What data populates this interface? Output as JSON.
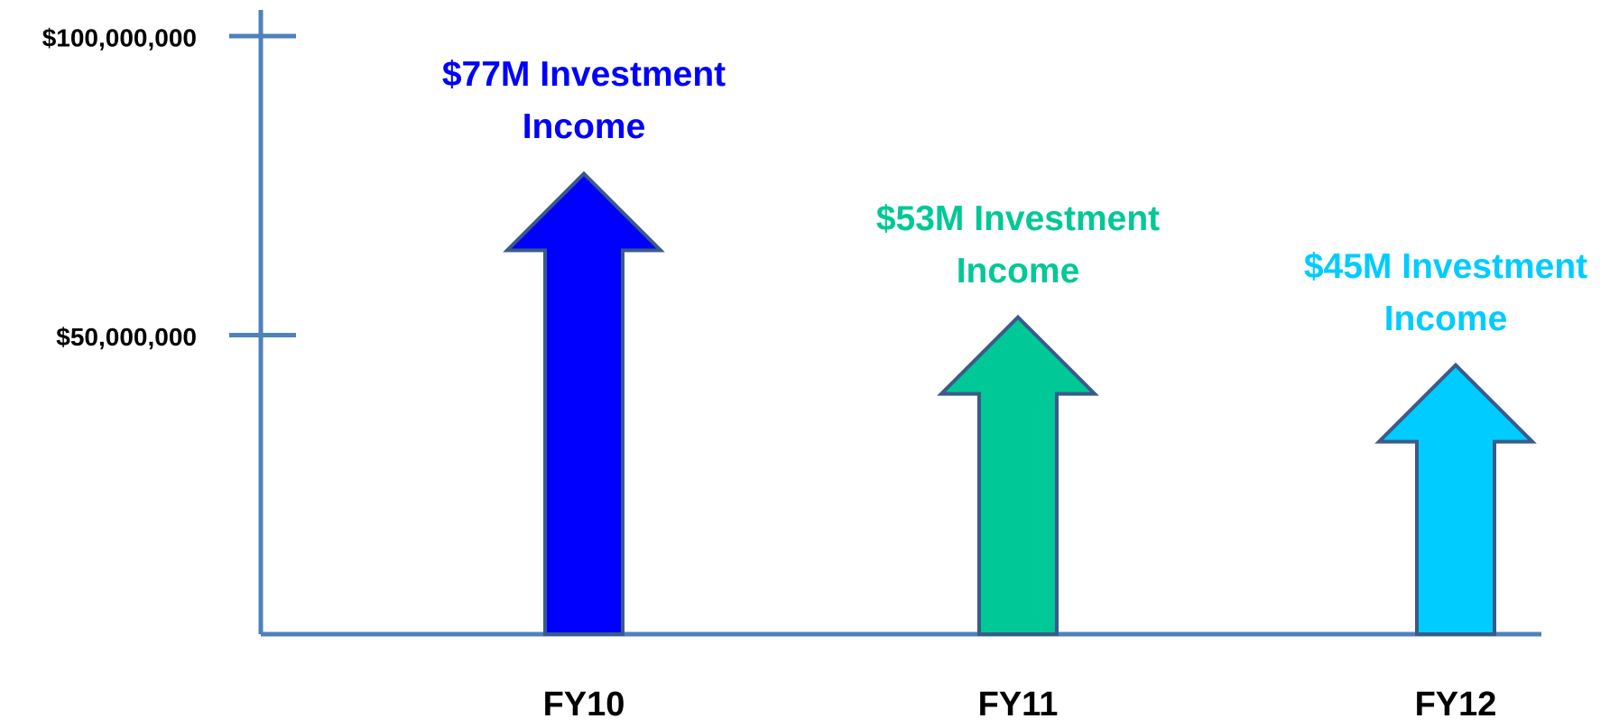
{
  "chart_data": {
    "type": "bar",
    "categories": [
      "FY10",
      "FY11",
      "FY12"
    ],
    "values": [
      77000000,
      53000000,
      45000000
    ],
    "value_labels": [
      "$77M Investment Income",
      "$53M Investment Income",
      "$45M Investment Income"
    ],
    "colors": [
      "#0000ff",
      "#00c896",
      "#00ccff"
    ],
    "ylim": [
      0,
      100000000
    ],
    "yticks": [
      {
        "value": 50000000,
        "label": "$50,000,000"
      },
      {
        "value": 100000000,
        "label": "$100,000,000"
      }
    ],
    "grid": false
  }
}
